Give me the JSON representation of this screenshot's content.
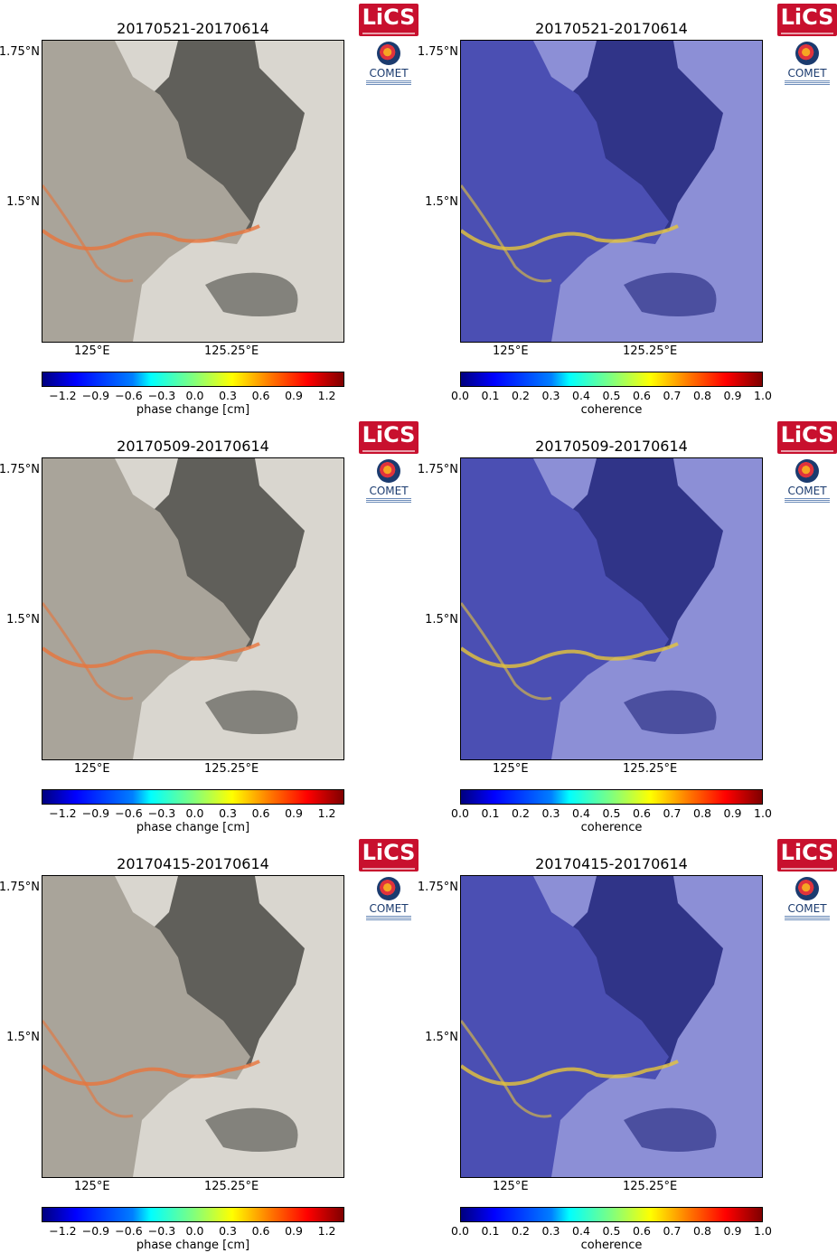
{
  "panels": [
    {
      "title": "20170521-20170614",
      "kind": "phase",
      "colorbar_label": "phase change [cm]"
    },
    {
      "title": "20170521-20170614",
      "kind": "coherence",
      "colorbar_label": "coherence"
    },
    {
      "title": "20170509-20170614",
      "kind": "phase",
      "colorbar_label": "phase change [cm]"
    },
    {
      "title": "20170509-20170614",
      "kind": "coherence",
      "colorbar_label": "coherence"
    },
    {
      "title": "20170415-20170614",
      "kind": "phase",
      "colorbar_label": "phase change [cm]"
    },
    {
      "title": "20170415-20170614",
      "kind": "coherence",
      "colorbar_label": "coherence"
    }
  ],
  "axes": {
    "lat_ticks": [
      "1.75°N",
      "1.5°N"
    ],
    "lon_ticks": [
      "125°E",
      "125.25°E"
    ]
  },
  "phase_ticks": [
    "−1.2",
    "−0.9",
    "−0.6",
    "−0.3",
    "0.0",
    "0.3",
    "0.6",
    "0.9",
    "1.2"
  ],
  "coherence_ticks": [
    "0.0",
    "0.1",
    "0.2",
    "0.3",
    "0.4",
    "0.5",
    "0.6",
    "0.7",
    "0.8",
    "0.9",
    "1.0"
  ],
  "logos": {
    "lics": "LiCS",
    "comet": "COMET"
  },
  "colors": {
    "lics_red": "#c8102e",
    "comet_navy": "#1b3b6f",
    "coherence_bg": "#3c40a8",
    "phase_bg": "#b8b3a8"
  }
}
